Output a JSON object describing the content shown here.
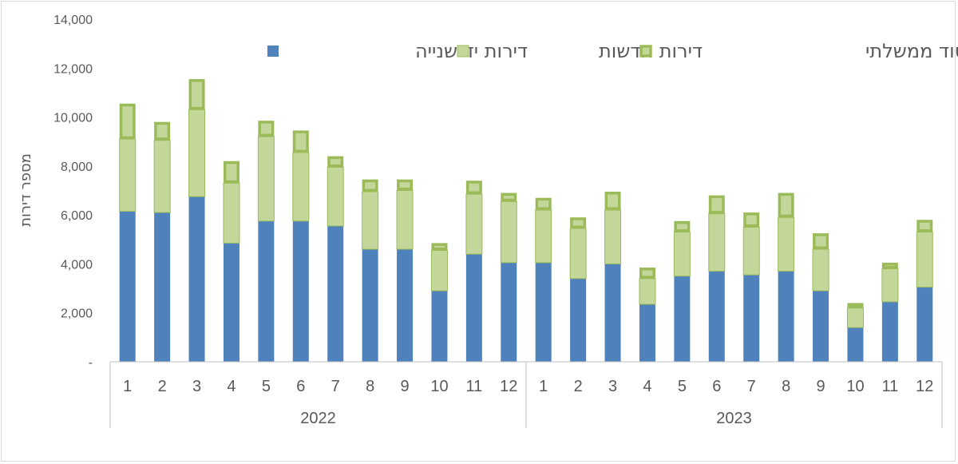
{
  "chart_data": {
    "type": "bar",
    "stacked": true,
    "title": "",
    "xlabel": "",
    "ylabel": "מספר דירות",
    "ylim": [
      0,
      14000
    ],
    "yticks": [
      "-",
      "2,000",
      "4,000",
      "6,000",
      "8,000",
      "10,000",
      "12,000",
      "14,000"
    ],
    "grid": false,
    "legend_position": "top",
    "groups": [
      {
        "label": "2022",
        "categories": [
          "1",
          "2",
          "3",
          "4",
          "5",
          "6",
          "7",
          "8",
          "9",
          "10",
          "11",
          "12"
        ]
      },
      {
        "label": "2023",
        "categories": [
          "1",
          "2",
          "3",
          "4",
          "5",
          "6",
          "7",
          "8",
          "9",
          "10",
          "11",
          "12"
        ]
      }
    ],
    "series": [
      {
        "name": "דירות יד שנייה",
        "color": "#4f81bd",
        "values": [
          6150,
          6100,
          6750,
          4850,
          5750,
          5750,
          5550,
          4600,
          4600,
          2900,
          4400,
          4050,
          4050,
          3400,
          4000,
          2350,
          3500,
          3700,
          3550,
          3700,
          2900,
          1400,
          2450,
          3050
        ]
      },
      {
        "name": "דירות חדשות",
        "color": "#c4d79b",
        "values": [
          2950,
          2950,
          3550,
          2450,
          3450,
          2800,
          2400,
          2350,
          2400,
          1650,
          2450,
          2500,
          2150,
          2050,
          2200,
          1050,
          1800,
          2350,
          1950,
          2200,
          1700,
          800,
          1350,
          2250
        ]
      },
      {
        "name": "דירות בסבסוד ממשלתי",
        "color": "#c4d79b",
        "outline": "#9bbb59",
        "values": [
          1450,
          750,
          1250,
          900,
          650,
          900,
          450,
          500,
          450,
          300,
          550,
          350,
          500,
          450,
          750,
          450,
          450,
          750,
          600,
          1000,
          650,
          200,
          250,
          500
        ]
      }
    ]
  }
}
